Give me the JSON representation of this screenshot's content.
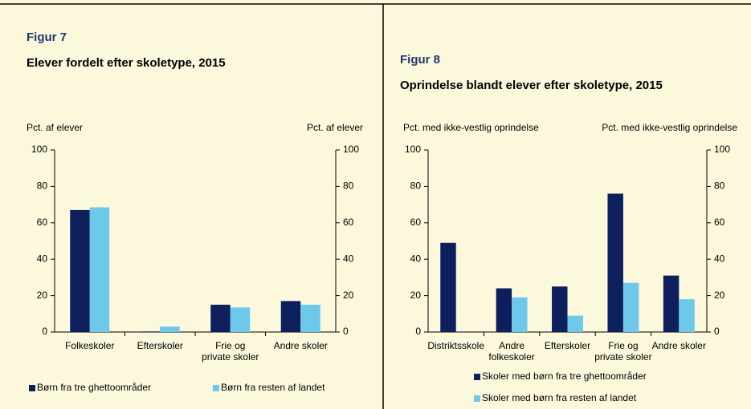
{
  "chart_data": [
    {
      "type": "bar",
      "label": "Figur 7",
      "title": "Elever fordelt efter skoletype, 2015",
      "ylabel": "Pct. af elever",
      "y2label": "Pct. af elever",
      "categories": [
        "Folkeskoler",
        "Efterskoler",
        "Frie og\nprivate skoler",
        "Andre skoler"
      ],
      "series": [
        {
          "name": "Børn fra tre ghettoområder",
          "color": "#0d1f5c",
          "values": [
            67,
            0.3,
            15,
            17
          ]
        },
        {
          "name": "Børn fra resten af landet",
          "color": "#6ec8ea",
          "values": [
            68.5,
            3,
            13.5,
            15
          ]
        }
      ],
      "ylim": [
        0,
        100
      ],
      "yticks": [
        0,
        20,
        40,
        60,
        80,
        100
      ],
      "y2lim": [
        0,
        100
      ],
      "y2ticks": [
        0,
        20,
        40,
        60,
        80,
        100
      ]
    },
    {
      "type": "bar",
      "label": "Figur 8",
      "title": "Oprindelse blandt elever efter skoletype, 2015",
      "ylabel": "Pct. med ikke-vestlig oprindelse",
      "y2label": "Pct. med ikke-vestlig oprindelse",
      "categories": [
        "Distriktsskole",
        "Andre\nfolkeskoler",
        "Efterskoler",
        "Frie og\nprivate skoler",
        "Andre skoler"
      ],
      "series": [
        {
          "name": "Skoler med børn fra tre ghettoområder",
          "color": "#0d1f5c",
          "values": [
            49,
            24,
            25,
            76,
            31
          ]
        },
        {
          "name": "Skoler med børn fra resten af landet",
          "color": "#6ec8ea",
          "values": [
            null,
            19,
            9,
            27,
            18
          ]
        }
      ],
      "ylim": [
        0,
        100
      ],
      "yticks": [
        0,
        20,
        40,
        60,
        80,
        100
      ],
      "y2lim": [
        0,
        100
      ],
      "y2ticks": [
        0,
        20,
        40,
        60,
        80,
        100
      ]
    }
  ]
}
